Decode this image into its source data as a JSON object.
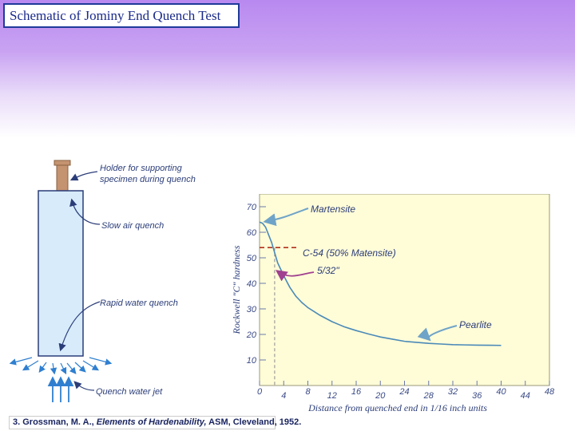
{
  "slide": {
    "title": "Schematic of Jominy End Quench Test",
    "reference": {
      "number": "3.",
      "author": "Grossman, M. A.,",
      "work": "Elements of Hardenability,",
      "rest": "ASM, Cleveland, 1952."
    }
  },
  "schematic": {
    "labels": {
      "holder_line1": "Holder for supporting",
      "holder_line2": "specimen during quench",
      "slow_air": "Slow air quench",
      "rapid_water": "Rapid water quench",
      "water_jet": "Quench water jet"
    },
    "colors": {
      "holder": "#c49370",
      "specimen": "#d7ebfb",
      "water": "#2f7fd0"
    }
  },
  "chart_data": {
    "type": "line",
    "xlabel": "Distance from quenched end in 1/16 inch units",
    "ylabel": "Rockwell \"C\" hardness",
    "xticks": [
      0,
      4,
      8,
      12,
      16,
      20,
      24,
      28,
      32,
      36,
      40,
      44,
      48
    ],
    "yticks": [
      10,
      20,
      30,
      40,
      50,
      60,
      70
    ],
    "xlim": [
      0,
      48
    ],
    "ylim": [
      0,
      75
    ],
    "series": [
      {
        "x": [
          0,
          0.5,
          1,
          1.5,
          2,
          2.5,
          3,
          4,
          5,
          6,
          7,
          8,
          10,
          12,
          14,
          16,
          18,
          20,
          24,
          28,
          32,
          36,
          40
        ],
        "y": [
          64,
          63.5,
          62,
          59,
          56,
          52,
          48,
          43,
          38.5,
          35,
          32.5,
          30.5,
          27.5,
          25,
          23,
          21.5,
          20.2,
          19,
          17.3,
          16.5,
          16,
          15.8,
          15.7
        ]
      }
    ],
    "annotations": {
      "martensite": "Martensite",
      "c54": "C-54 (50% Matensite)",
      "five32": "5/32\"",
      "pearlite": "Pearlite"
    },
    "reference_lines": {
      "hardness": 54,
      "distance": 2.5
    },
    "colors": {
      "background": "#fffcd8",
      "curve": "#4a8ab8",
      "arrow": "#6fa4c8",
      "c54_line": "#b0321a",
      "five32_arrow": "#a04090"
    }
  }
}
